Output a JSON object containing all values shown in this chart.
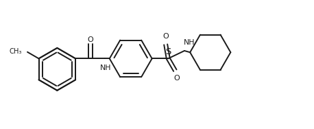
{
  "bg_color": "#ffffff",
  "line_color": "#1a1a1a",
  "line_width": 1.4,
  "fig_width": 4.58,
  "fig_height": 1.88,
  "dpi": 100,
  "xlim": [
    0,
    9.5
  ],
  "ylim": [
    -0.3,
    3.8
  ]
}
